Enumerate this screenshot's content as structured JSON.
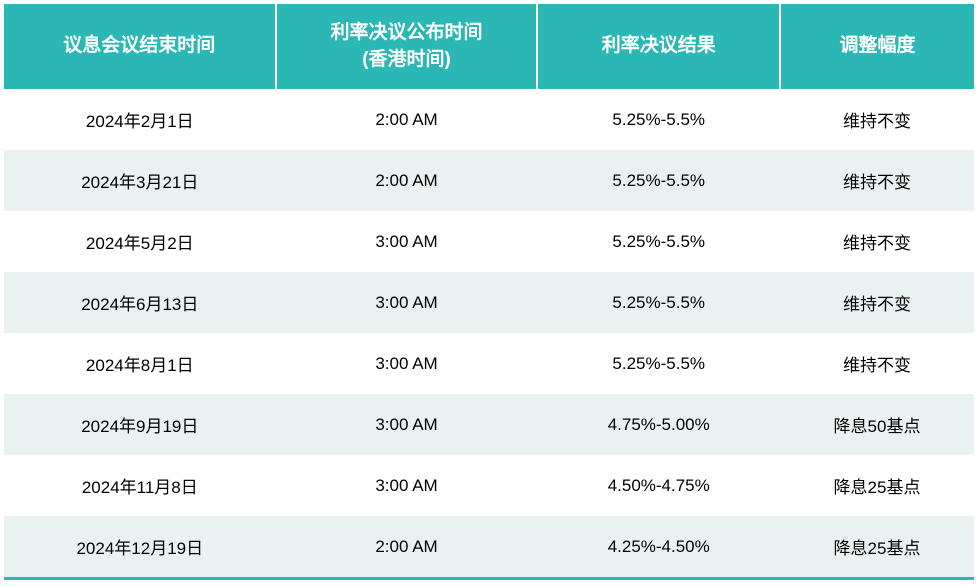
{
  "table": {
    "header_bg_color": "#2bb7b3",
    "header_text_color": "#ffffff",
    "row_odd_bg": "#ffffff",
    "row_even_bg": "#eaf2f1",
    "border_bottom_color": "#2bb7b3",
    "header_fontsize": 19,
    "cell_fontsize": 17,
    "column_widths": [
      "28%",
      "27%",
      "25%",
      "20%"
    ],
    "columns": [
      "议息会议结束时间",
      "利率决议公布时间\n(香港时间)",
      "利率决议结果",
      "调整幅度"
    ],
    "rows": [
      {
        "end_date": "2024年2月1日",
        "announce_time": "2:00 AM",
        "result": "5.25%-5.5%",
        "adjustment": "维持不变"
      },
      {
        "end_date": "2024年3月21日",
        "announce_time": "2:00 AM",
        "result": "5.25%-5.5%",
        "adjustment": "维持不变"
      },
      {
        "end_date": "2024年5月2日",
        "announce_time": "3:00 AM",
        "result": "5.25%-5.5%",
        "adjustment": "维持不变"
      },
      {
        "end_date": "2024年6月13日",
        "announce_time": "3:00 AM",
        "result": "5.25%-5.5%",
        "adjustment": "维持不变"
      },
      {
        "end_date": "2024年8月1日",
        "announce_time": "3:00 AM",
        "result": "5.25%-5.5%",
        "adjustment": "维持不变"
      },
      {
        "end_date": "2024年9月19日",
        "announce_time": "3:00 AM",
        "result": "4.75%-5.00%",
        "adjustment": "降息50基点"
      },
      {
        "end_date": "2024年11月8日",
        "announce_time": "3:00 AM",
        "result": "4.50%-4.75%",
        "adjustment": "降息25基点"
      },
      {
        "end_date": "2024年12月19日",
        "announce_time": "2:00 AM",
        "result": "4.25%-4.50%",
        "adjustment": "降息25基点"
      }
    ]
  }
}
